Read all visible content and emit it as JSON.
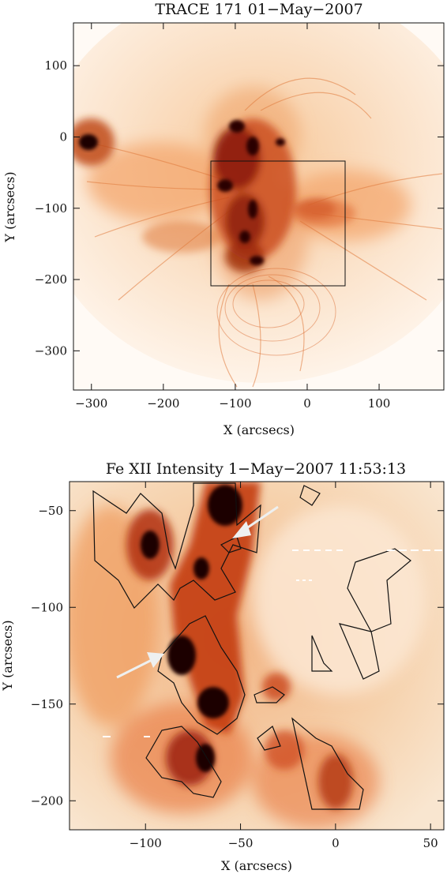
{
  "panels": [
    {
      "title": "TRACE 171 01−May−2007",
      "xlabel": "X (arcsecs)",
      "ylabel": "Y (arcsecs)",
      "xticks": [
        "−300",
        "−200",
        "−100",
        "0",
        "100"
      ],
      "yticks": [
        "100",
        "0",
        "−100",
        "−200",
        "−300"
      ],
      "xrange": [
        -325,
        190
      ],
      "yrange": [
        -355,
        160
      ],
      "colormap": "white-orange-red-black"
    },
    {
      "title": "Fe XII Intensity  1−May−2007 11:53:13",
      "xlabel": "X (arcsecs)",
      "ylabel": "Y (arcsecs)",
      "xticks": [
        "−100",
        "−50",
        "0",
        "50"
      ],
      "yticks": [
        "−50",
        "−100",
        "−150",
        "−200"
      ],
      "xrange": [
        -140,
        57
      ],
      "yrange": [
        -215,
        -35
      ],
      "colormap": "white-orange-red-black"
    }
  ],
  "colors": {
    "dark": "#1a0000",
    "red": "#9a1a00",
    "orange": "#e8702a",
    "light": "#f8d9b5",
    "white": "#ffffff"
  }
}
